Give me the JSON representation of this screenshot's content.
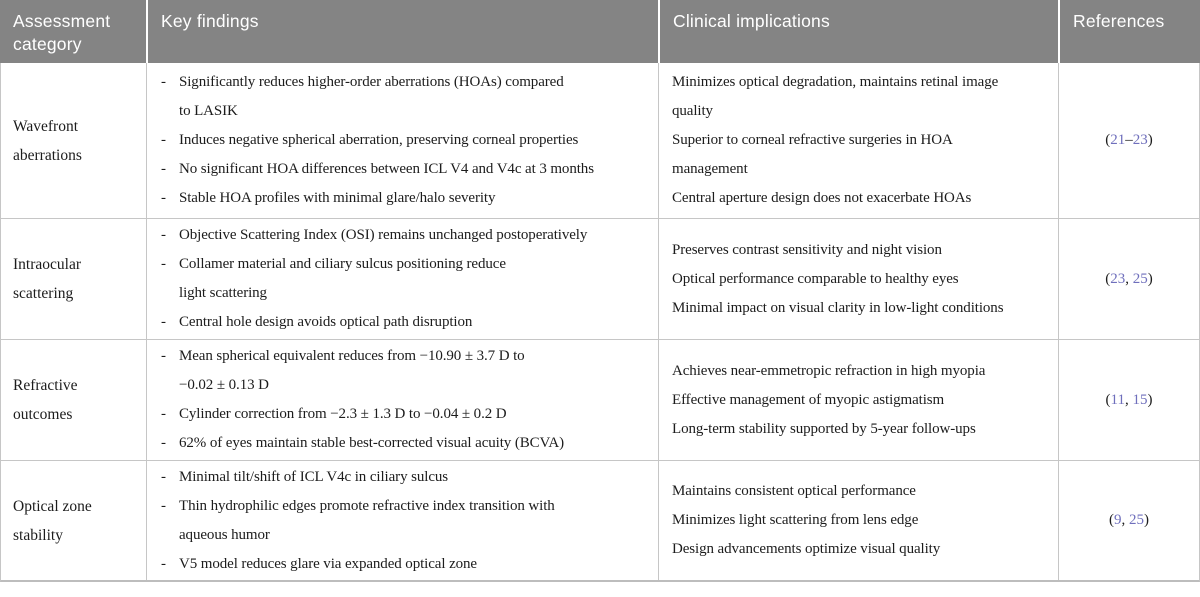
{
  "colors": {
    "header_bg": "#848484",
    "header_text": "#ffffff",
    "body_text": "#1c1c1c",
    "grid_line": "#c6c6c6",
    "reference_link": "#6f6fbc"
  },
  "table": {
    "headers": [
      "Assessment category",
      "Key findings",
      "Clinical implications",
      "References"
    ],
    "rows": [
      {
        "category": "Wavefront aberrations",
        "key_findings": [
          [
            "Significantly reduces higher-order aberrations (HOAs) compared",
            "to LASIK"
          ],
          [
            "Induces negative spherical aberration, preserving corneal properties"
          ],
          [
            "No significant HOA differences between ICL V4 and V4c at 3 months"
          ],
          [
            "Stable HOA profiles with minimal glare/halo severity"
          ]
        ],
        "clinical_implications": [
          [
            "Minimizes optical degradation, maintains retinal image",
            "quality"
          ],
          [
            "Superior to corneal refractive surgeries in HOA",
            "management"
          ],
          [
            "Central aperture design does not exacerbate HOAs"
          ]
        ],
        "references": [
          {
            "t": "(",
            "link": false
          },
          {
            "t": "21",
            "link": true
          },
          {
            "t": "–",
            "link": false
          },
          {
            "t": "23",
            "link": true
          },
          {
            "t": ")",
            "link": false
          }
        ]
      },
      {
        "category": "Intraocular scattering",
        "key_findings": [
          [
            "Objective Scattering Index (OSI) remains unchanged postoperatively"
          ],
          [
            "Collamer material and ciliary sulcus positioning reduce",
            "light scattering"
          ],
          [
            "Central hole design avoids optical path disruption"
          ]
        ],
        "clinical_implications": [
          [
            "Preserves contrast sensitivity and night vision"
          ],
          [
            "Optical performance comparable to healthy eyes"
          ],
          [
            "Minimal impact on visual clarity in low-light conditions"
          ]
        ],
        "references": [
          {
            "t": "(",
            "link": false
          },
          {
            "t": "23",
            "link": true
          },
          {
            "t": ", ",
            "link": false
          },
          {
            "t": "25",
            "link": true
          },
          {
            "t": ")",
            "link": false
          }
        ]
      },
      {
        "category": "Refractive outcomes",
        "key_findings": [
          [
            "Mean spherical equivalent reduces from −10.90 ± 3.7 D to",
            "−0.02 ± 0.13 D"
          ],
          [
            "Cylinder correction from −2.3 ± 1.3 D to −0.04 ± 0.2 D"
          ],
          [
            "62% of eyes maintain stable best-corrected visual acuity (BCVA)"
          ]
        ],
        "clinical_implications": [
          [
            "Achieves near-emmetropic refraction in high myopia"
          ],
          [
            "Effective management of myopic astigmatism"
          ],
          [
            "Long-term stability supported by 5-year follow-ups"
          ]
        ],
        "references": [
          {
            "t": "(",
            "link": false
          },
          {
            "t": "11",
            "link": true
          },
          {
            "t": ", ",
            "link": false
          },
          {
            "t": "15",
            "link": true
          },
          {
            "t": ")",
            "link": false
          }
        ]
      },
      {
        "category": "Optical zone stability",
        "key_findings": [
          [
            "Minimal tilt/shift of ICL V4c in ciliary sulcus"
          ],
          [
            "Thin hydrophilic edges promote refractive index transition with",
            "aqueous humor"
          ],
          [
            "V5 model reduces glare via expanded optical zone"
          ]
        ],
        "clinical_implications": [
          [
            "Maintains consistent optical performance"
          ],
          [
            "Minimizes light scattering from lens edge"
          ],
          [
            "Design advancements optimize visual quality"
          ]
        ],
        "references": [
          {
            "t": "(",
            "link": false
          },
          {
            "t": "9",
            "link": true
          },
          {
            "t": ", ",
            "link": false
          },
          {
            "t": "25",
            "link": true
          },
          {
            "t": ")",
            "link": false
          }
        ]
      }
    ]
  }
}
